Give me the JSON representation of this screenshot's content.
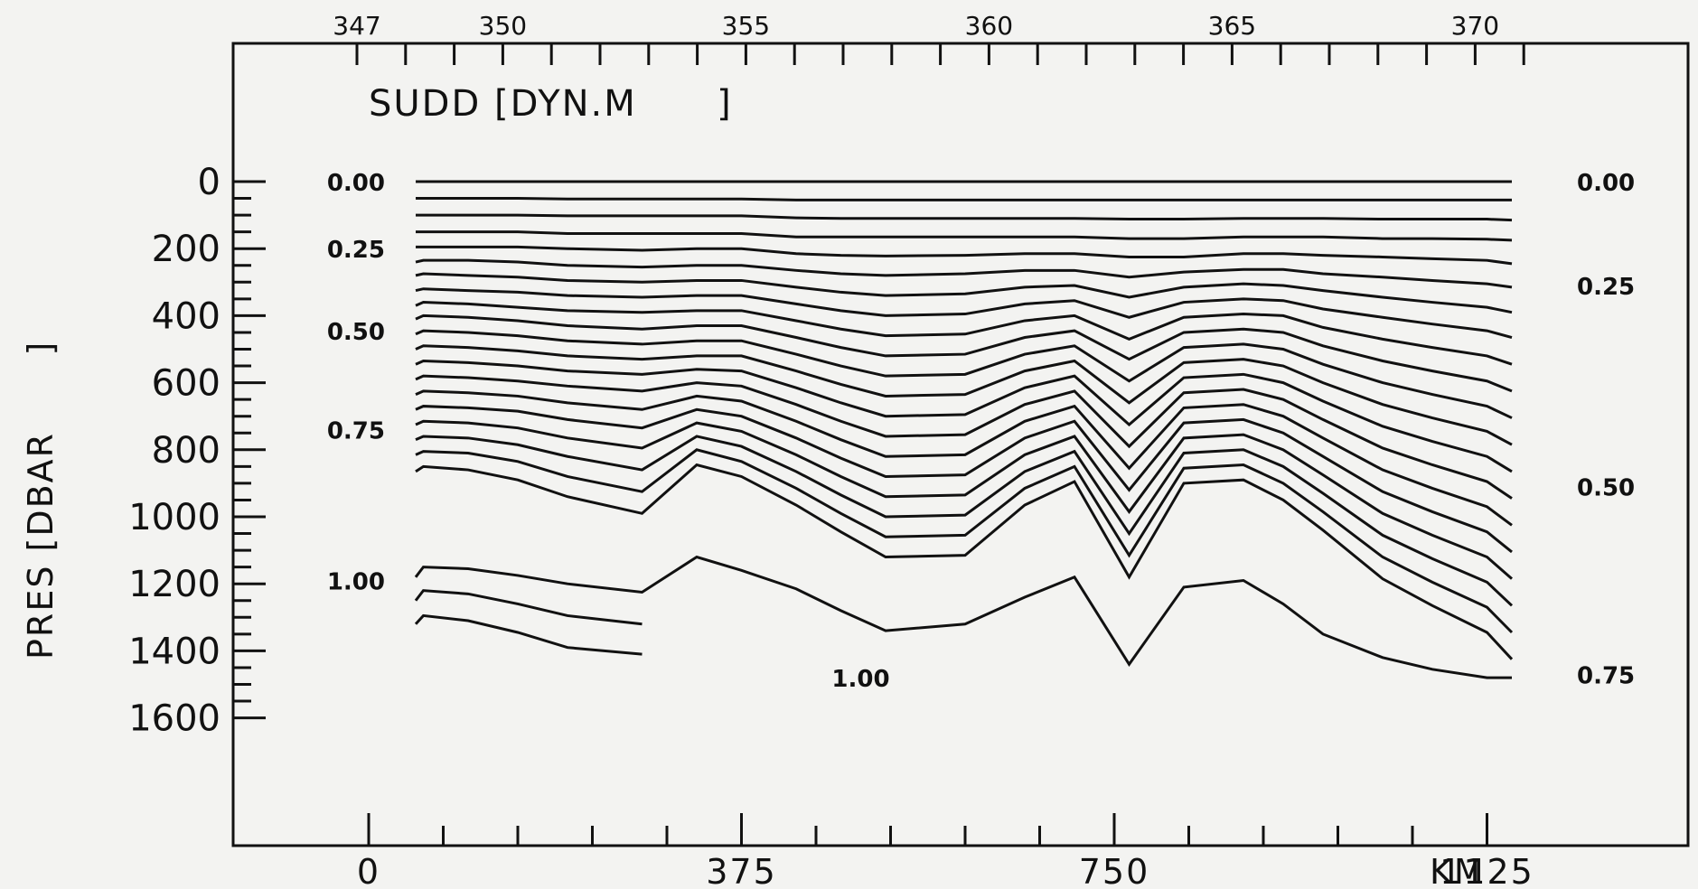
{
  "chart_data": {
    "type": "contour",
    "title": "SUDD [DYN.M      ]",
    "ylabel": "PRES [DBAR      ]",
    "xlabel_unit": "KM",
    "top_axis": {
      "tick_labels": [
        "347",
        "350",
        "355",
        "360",
        "365",
        "370"
      ],
      "tick_values": [
        347,
        350,
        355,
        360,
        365,
        370
      ],
      "minor_ticks_from": 347,
      "minor_ticks_to": 371
    },
    "bottom_axis": {
      "tick_labels": [
        "0",
        "375",
        "750",
        "1125"
      ],
      "tick_values": [
        0,
        375,
        750,
        1125
      ],
      "range": [
        0,
        1150
      ]
    },
    "y_axis": {
      "tick_labels": [
        "0",
        "200",
        "400",
        "600",
        "800",
        "1000",
        "1200",
        "1400",
        "1600"
      ],
      "tick_values": [
        0,
        200,
        400,
        600,
        800,
        1000,
        1200,
        1400,
        1600
      ],
      "range": [
        0,
        1600
      ],
      "inverted": true
    },
    "contour_interval": 0.05,
    "contour_labels_left": [
      {
        "text": "0.00",
        "level": 0.0,
        "depth": 0
      },
      {
        "text": "0.25",
        "level": 0.25,
        "depth": 200
      },
      {
        "text": "0.50",
        "level": 0.5,
        "depth": 445
      },
      {
        "text": "0.75",
        "level": 0.75,
        "depth": 740
      },
      {
        "text": "1.00",
        "level": 1.0,
        "depth": 1190
      }
    ],
    "contour_labels_right": [
      {
        "text": "0.00",
        "level": 0.0,
        "depth": 0
      },
      {
        "text": "0.25",
        "level": 0.25,
        "depth": 310
      },
      {
        "text": "0.50",
        "level": 0.5,
        "depth": 910
      },
      {
        "text": "0.75",
        "level": 0.75,
        "depth": 1470
      }
    ],
    "contour_labels_inline": [
      {
        "text": "1.00",
        "level": 1.0,
        "x_km": 495,
        "depth": 1480
      }
    ],
    "stations_km": [
      0,
      55,
      100,
      150,
      200,
      275,
      330,
      375,
      430,
      475,
      520,
      600,
      660,
      710,
      765,
      820,
      880,
      920,
      960,
      1020,
      1070,
      1125,
      1150
    ],
    "contours": [
      {
        "level": 0.0,
        "depths": [
          0,
          0,
          0,
          0,
          0,
          0,
          0,
          0,
          0,
          0,
          0,
          0,
          0,
          0,
          0,
          0,
          0,
          0,
          0,
          0,
          0,
          0,
          0
        ]
      },
      {
        "level": 0.05,
        "depths": [
          50,
          50,
          50,
          50,
          52,
          52,
          52,
          52,
          55,
          55,
          55,
          55,
          55,
          55,
          55,
          55,
          55,
          55,
          55,
          55,
          55,
          55,
          55
        ]
      },
      {
        "level": 0.1,
        "depths": [
          100,
          100,
          100,
          100,
          102,
          102,
          102,
          102,
          108,
          110,
          110,
          110,
          110,
          110,
          112,
          112,
          110,
          110,
          110,
          112,
          112,
          112,
          115
        ]
      },
      {
        "level": 0.15,
        "depths": [
          150,
          150,
          150,
          150,
          155,
          155,
          155,
          155,
          165,
          165,
          165,
          165,
          165,
          165,
          170,
          170,
          165,
          165,
          165,
          170,
          170,
          172,
          175
        ]
      },
      {
        "level": 0.2,
        "depths": [
          195,
          195,
          195,
          195,
          200,
          205,
          200,
          200,
          215,
          220,
          222,
          220,
          215,
          215,
          225,
          225,
          215,
          215,
          220,
          225,
          230,
          235,
          245
        ]
      },
      {
        "level": 0.25,
        "depths": [
          240,
          235,
          235,
          240,
          250,
          255,
          250,
          250,
          265,
          275,
          280,
          275,
          265,
          265,
          285,
          270,
          262,
          262,
          275,
          285,
          295,
          305,
          315
        ]
      },
      {
        "level": 0.3,
        "depths": [
          280,
          275,
          280,
          285,
          295,
          300,
          295,
          295,
          315,
          330,
          340,
          335,
          315,
          310,
          345,
          315,
          305,
          310,
          325,
          345,
          360,
          375,
          390
        ]
      },
      {
        "level": 0.35,
        "depths": [
          325,
          320,
          325,
          330,
          340,
          345,
          340,
          340,
          365,
          385,
          400,
          395,
          365,
          355,
          405,
          360,
          350,
          355,
          380,
          405,
          425,
          445,
          465
        ]
      },
      {
        "level": 0.4,
        "depths": [
          370,
          360,
          365,
          375,
          385,
          390,
          385,
          385,
          415,
          440,
          460,
          455,
          415,
          400,
          470,
          405,
          395,
          400,
          435,
          470,
          495,
          520,
          545
        ]
      },
      {
        "level": 0.45,
        "depths": [
          410,
          400,
          405,
          415,
          430,
          440,
          430,
          430,
          465,
          495,
          520,
          515,
          465,
          445,
          530,
          450,
          440,
          450,
          490,
          535,
          565,
          595,
          625
        ]
      },
      {
        "level": 0.5,
        "depths": [
          455,
          445,
          450,
          460,
          475,
          485,
          475,
          475,
          515,
          550,
          580,
          575,
          515,
          490,
          595,
          495,
          485,
          500,
          545,
          600,
          635,
          670,
          705
        ]
      },
      {
        "level": 0.55,
        "depths": [
          500,
          490,
          495,
          505,
          520,
          530,
          520,
          520,
          565,
          605,
          640,
          635,
          565,
          535,
          660,
          540,
          530,
          550,
          600,
          665,
          705,
          745,
          785
        ]
      },
      {
        "level": 0.6,
        "depths": [
          545,
          535,
          540,
          550,
          565,
          575,
          560,
          565,
          615,
          660,
          700,
          695,
          615,
          580,
          725,
          585,
          575,
          600,
          655,
          730,
          775,
          820,
          865
        ]
      },
      {
        "level": 0.65,
        "depths": [
          590,
          580,
          585,
          595,
          610,
          625,
          600,
          610,
          665,
          715,
          760,
          755,
          665,
          625,
          790,
          630,
          620,
          650,
          710,
          795,
          845,
          895,
          945
        ]
      },
      {
        "level": 0.7,
        "depths": [
          635,
          625,
          630,
          640,
          660,
          680,
          640,
          655,
          715,
          770,
          820,
          815,
          715,
          670,
          855,
          675,
          665,
          700,
          765,
          860,
          915,
          970,
          1025
        ]
      },
      {
        "level": 0.75,
        "depths": [
          680,
          670,
          675,
          685,
          710,
          735,
          680,
          700,
          765,
          825,
          880,
          875,
          765,
          715,
          920,
          720,
          710,
          750,
          820,
          925,
          985,
          1045,
          1105
        ]
      },
      {
        "level": 0.8,
        "depths": [
          725,
          715,
          720,
          735,
          765,
          795,
          720,
          745,
          815,
          880,
          940,
          935,
          815,
          760,
          985,
          765,
          755,
          800,
          875,
          990,
          1055,
          1120,
          1185
        ]
      },
      {
        "level": 0.85,
        "depths": [
          770,
          760,
          765,
          785,
          820,
          860,
          760,
          790,
          865,
          935,
          1000,
          995,
          865,
          805,
          1050,
          810,
          800,
          850,
          930,
          1055,
          1125,
          1195,
          1265
        ]
      },
      {
        "level": 0.9,
        "depths": [
          815,
          805,
          810,
          835,
          880,
          925,
          800,
          835,
          915,
          990,
          1060,
          1055,
          915,
          850,
          1115,
          855,
          845,
          900,
          985,
          1120,
          1195,
          1270,
          1345
        ]
      },
      {
        "level": 0.95,
        "depths": [
          865,
          850,
          860,
          890,
          940,
          990,
          845,
          880,
          965,
          1045,
          1120,
          1115,
          965,
          895,
          1180,
          900,
          890,
          950,
          1040,
          1185,
          1265,
          1345,
          1425
        ]
      },
      {
        "level": 1.0,
        "depths": [
          1180,
          1150,
          1155,
          1175,
          1200,
          1225,
          1120,
          1160,
          1215,
          1280,
          1340,
          1320,
          1240,
          1180,
          1440,
          1210,
          1190,
          1260,
          1350,
          1420,
          1455,
          1490,
          1510
        ]
      },
      {
        "level": 1.05,
        "depths": [
          1250,
          1220,
          1230,
          1260,
          1295,
          1320,
          null,
          null,
          null,
          null,
          null,
          null,
          null,
          null,
          null,
          null,
          null,
          null,
          null,
          null,
          null,
          null,
          null
        ]
      },
      {
        "level": 1.1,
        "depths": [
          1320,
          1295,
          1310,
          1345,
          1390,
          1410,
          null,
          null,
          null,
          null,
          null,
          null,
          null,
          null,
          null,
          null,
          null,
          null,
          null,
          null,
          null,
          null,
          null
        ]
      }
    ]
  }
}
